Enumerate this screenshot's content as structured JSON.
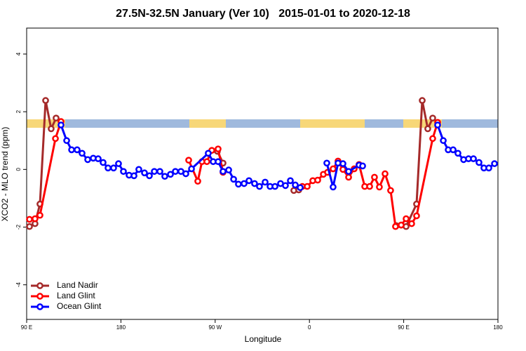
{
  "chart_data": {
    "type": "line",
    "title": "27.5N-32.5N January (Ver 10)   2015-01-01 to 2020-12-18",
    "xlabel": "Longitude",
    "ylabel": "XCO2 - MLO trend (ppm)",
    "xlim": [
      90,
      540
    ],
    "ylim": [
      -5.2,
      4.9
    ],
    "xticks": [
      {
        "value": 90,
        "label": "90 E"
      },
      {
        "value": 180,
        "label": "180"
      },
      {
        "value": 270,
        "label": "90 W"
      },
      {
        "value": 360,
        "label": "0"
      },
      {
        "value": 450,
        "label": "90 E"
      },
      {
        "value": 540,
        "label": "180"
      }
    ],
    "yticks": [
      -4,
      -2,
      0,
      2,
      4
    ],
    "legend": "bottom-left",
    "series": [
      {
        "name": "Land Nadir",
        "color": "#a52a2a",
        "x": [
          92.7,
          98.0,
          102.7,
          108.1,
          113.4,
          118.1,
          null,
          272.1,
          277.5,
          null,
          345.1,
          349.8,
          null,
          442.9,
          447.6,
          452.3,
          462.3,
          467.7,
          473.0,
          477.7
        ],
        "values": [
          -1.98,
          -1.88,
          -1.2,
          2.39,
          1.41,
          1.78,
          null,
          0.63,
          0.22,
          null,
          -0.73,
          -0.71,
          null,
          -1.95,
          -1.93,
          -1.98,
          -1.2,
          2.39,
          1.41,
          1.78
        ]
      },
      {
        "name": "Land Glint",
        "color": "#ff0000",
        "x": [
          92.7,
          98.0,
          102.7,
          117.5,
          122.8,
          null,
          244.7,
          253.4,
          257.4,
          262.1,
          266.8,
          272.8,
          277.5,
          null,
          353.2,
          357.9,
          363.2,
          367.9,
          373.3,
          377.3,
          382.6,
          387.3,
          392.0,
          397.4,
          402.7,
          407.4,
          412.8,
          417.5,
          422.1,
          426.8,
          432.2,
          437.5,
          442.2,
          447.6,
          452.3,
          457.6,
          462.3,
          477.7,
          482.4
        ],
        "values": [
          -1.73,
          -1.71,
          -1.59,
          1.07,
          1.66,
          null,
          0.32,
          -0.41,
          0.27,
          0.27,
          0.66,
          0.71,
          -0.1,
          null,
          -0.59,
          -0.59,
          -0.39,
          -0.37,
          -0.17,
          -0.1,
          0.02,
          0.29,
          0.0,
          -0.27,
          0.02,
          0.17,
          -0.59,
          -0.59,
          -0.27,
          -0.61,
          -0.15,
          -0.73,
          -1.98,
          -1.93,
          -1.71,
          -1.88,
          -1.61,
          1.07,
          1.63
        ]
      },
      {
        "name": "Ocean Glint",
        "color": "#0000ff",
        "x": [
          122.8,
          128.2,
          132.9,
          138.2,
          142.9,
          148.3,
          153.6,
          158.3,
          163.0,
          167.7,
          173.0,
          177.7,
          182.4,
          187.8,
          192.5,
          197.1,
          202.5,
          207.2,
          211.9,
          217.2,
          221.9,
          227.3,
          232.0,
          237.3,
          242.0,
          247.4,
          263.4,
          268.1,
          272.8,
          277.5,
          282.9,
          287.6,
          292.2,
          297.6,
          302.3,
          307.6,
          312.3,
          317.7,
          322.4,
          327.1,
          332.4,
          337.1,
          341.8,
          346.5,
          351.2,
          null,
          376.6,
          382.6,
          387.3,
          392.0,
          397.4,
          407.4,
          410.8,
          null,
          482.4,
          487.8,
          492.5,
          497.2,
          501.8,
          507.2,
          511.9,
          516.6,
          521.9,
          526.6,
          531.3,
          536.7
        ],
        "values": [
          1.54,
          1.0,
          0.68,
          0.68,
          0.56,
          0.34,
          0.39,
          0.37,
          0.24,
          0.05,
          0.05,
          0.2,
          -0.07,
          -0.2,
          -0.22,
          0.0,
          -0.12,
          -0.22,
          -0.07,
          -0.07,
          -0.24,
          -0.17,
          -0.07,
          -0.07,
          -0.15,
          0.02,
          0.56,
          0.27,
          0.27,
          -0.07,
          -0.02,
          -0.34,
          -0.51,
          -0.49,
          -0.39,
          -0.49,
          -0.59,
          -0.44,
          -0.59,
          -0.59,
          -0.49,
          -0.56,
          -0.39,
          -0.54,
          -0.63,
          null,
          0.22,
          -0.61,
          0.22,
          0.2,
          -0.07,
          0.15,
          0.12,
          null,
          1.54,
          1.0,
          0.68,
          0.68,
          0.56,
          0.34,
          0.37,
          0.37,
          0.24,
          0.05,
          0.05,
          0.2
        ]
      }
    ]
  }
}
